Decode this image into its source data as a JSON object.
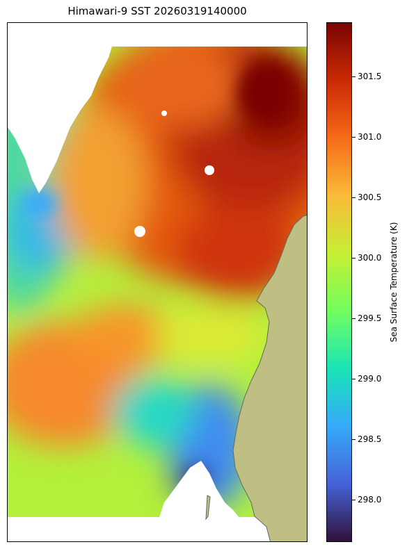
{
  "title": "Himawari-9 SST 20260319140000",
  "colorbar": {
    "label": "Sea Surface Temperature (K)",
    "min": 297.65,
    "max": 301.95,
    "ticks": [
      "298.0",
      "298.5",
      "299.0",
      "299.5",
      "300.0",
      "300.5",
      "301.0",
      "301.5"
    ],
    "colors": [
      "#30123b",
      "#4662d7",
      "#36aaf9",
      "#1ae4b6",
      "#72fe5e",
      "#c7ef34",
      "#faba39",
      "#f66b19",
      "#ca2a04",
      "#7a0403"
    ]
  },
  "colors": {
    "land": "#bfbf84",
    "coast": "#666666",
    "missing": "#ffffff"
  }
}
